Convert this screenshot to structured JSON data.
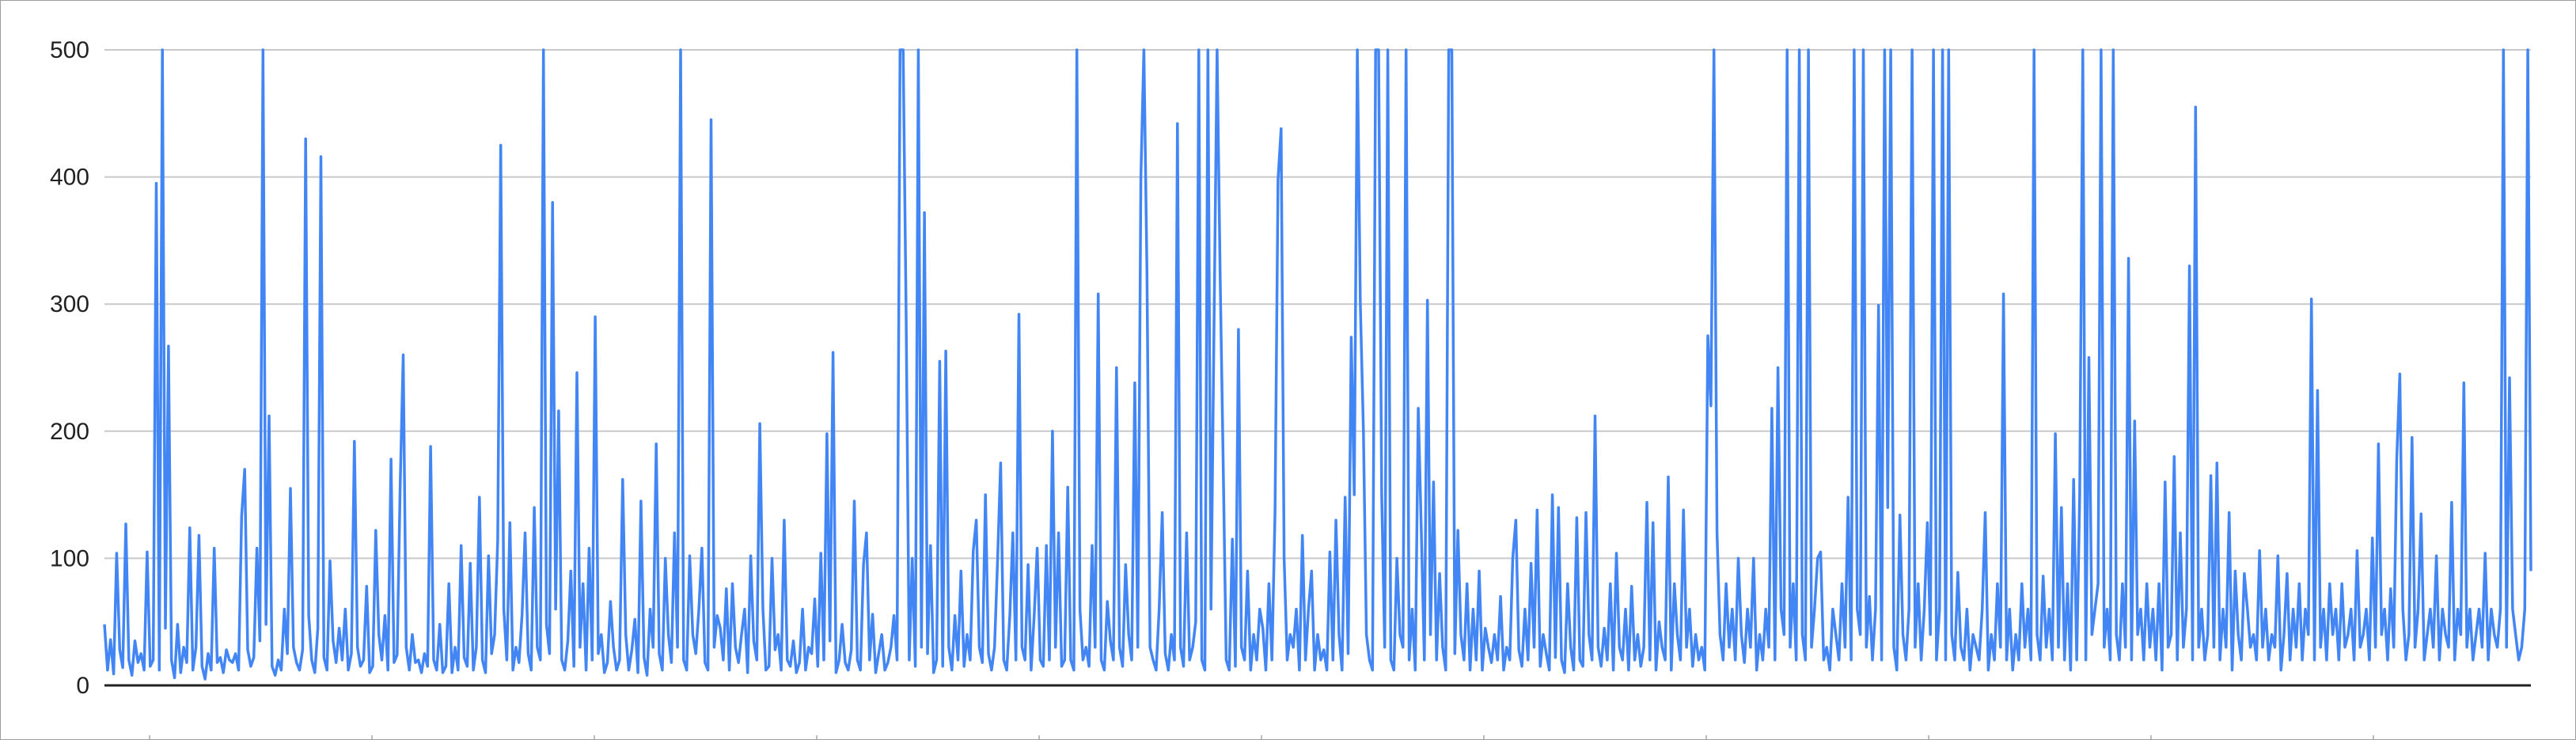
{
  "chart_data": {
    "type": "line",
    "title": "",
    "xlabel": "",
    "ylabel": "",
    "ylim": [
      0,
      500
    ],
    "yticks": [
      "0",
      "100",
      "200",
      "300",
      "400",
      "500"
    ],
    "grid": true,
    "legend": "none",
    "series": [
      {
        "color": "#4285f4",
        "values": [
          48,
          12,
          36,
          9,
          104,
          28,
          14,
          127,
          20,
          8,
          35,
          18,
          25,
          12,
          105,
          15,
          20,
          395,
          12,
          500,
          45,
          267,
          20,
          6,
          48,
          10,
          30,
          18,
          124,
          12,
          30,
          118,
          15,
          5,
          25,
          12,
          108,
          18,
          22,
          10,
          28,
          20,
          18,
          25,
          12,
          133,
          170,
          28,
          15,
          22,
          108,
          35,
          500,
          48,
          212,
          15,
          8,
          20,
          12,
          60,
          25,
          155,
          30,
          18,
          12,
          28,
          430,
          55,
          20,
          10,
          45,
          416,
          22,
          12,
          98,
          35,
          18,
          45,
          20,
          60,
          12,
          25,
          192,
          30,
          15,
          20,
          78,
          10,
          15,
          122,
          40,
          20,
          55,
          12,
          178,
          18,
          24,
          155,
          260,
          30,
          12,
          40,
          18,
          20,
          10,
          25,
          15,
          188,
          20,
          12,
          48,
          10,
          15,
          80,
          10,
          30,
          12,
          110,
          22,
          15,
          96,
          12,
          30,
          148,
          20,
          10,
          102,
          25,
          40,
          114,
          425,
          60,
          20,
          128,
          12,
          30,
          18,
          56,
          120,
          25,
          12,
          140,
          30,
          20,
          500,
          48,
          25,
          380,
          60,
          216,
          20,
          12,
          35,
          90,
          15,
          246,
          30,
          80,
          12,
          108,
          20,
          290,
          25,
          40,
          10,
          18,
          66,
          30,
          12,
          20,
          162,
          40,
          12,
          28,
          52,
          10,
          145,
          22,
          8,
          60,
          30,
          190,
          25,
          12,
          100,
          40,
          18,
          120,
          30,
          500,
          20,
          12,
          102,
          40,
          25,
          60,
          108,
          18,
          12,
          445,
          30,
          55,
          45,
          20,
          76,
          12,
          80,
          30,
          18,
          40,
          60,
          10,
          102,
          35,
          20,
          206,
          60,
          12,
          15,
          100,
          28,
          40,
          12,
          130,
          20,
          15,
          35,
          10,
          18,
          60,
          12,
          30,
          25,
          68,
          15,
          104,
          20,
          198,
          35,
          262,
          10,
          20,
          48,
          18,
          12,
          28,
          145,
          20,
          12,
          95,
          120,
          20,
          56,
          10,
          25,
          40,
          12,
          18,
          30,
          55,
          20,
          500,
          500,
          290,
          20,
          100,
          15,
          500,
          30,
          372,
          25,
          110,
          10,
          20,
          255,
          15,
          263,
          30,
          12,
          55,
          20,
          90,
          15,
          40,
          20,
          106,
          130,
          30,
          18,
          150,
          25,
          12,
          30,
          100,
          175,
          20,
          12,
          55,
          120,
          20,
          292,
          30,
          20,
          95,
          12,
          55,
          108,
          20,
          15,
          110,
          20,
          200,
          30,
          120,
          15,
          20,
          156,
          20,
          12,
          500,
          60,
          20,
          30,
          15,
          110,
          30,
          308,
          20,
          12,
          66,
          35,
          20,
          250,
          30,
          15,
          95,
          40,
          20,
          238,
          30,
          400,
          500,
          325,
          30,
          20,
          12,
          60,
          136,
          25,
          12,
          40,
          20,
          442,
          30,
          15,
          120,
          20,
          30,
          50,
          500,
          20,
          12,
          500,
          60,
          282,
          500,
          325,
          175,
          20,
          12,
          115,
          15,
          280,
          30,
          20,
          90,
          12,
          40,
          20,
          60,
          45,
          12,
          80,
          20,
          136,
          398,
          438,
          100,
          20,
          40,
          30,
          60,
          12,
          118,
          20,
          60,
          90,
          12,
          40,
          20,
          28,
          12,
          105,
          20,
          130,
          40,
          12,
          148,
          25,
          274,
          150,
          500,
          300,
          200,
          40,
          20,
          12,
          500,
          500,
          150,
          30,
          500,
          20,
          12,
          100,
          40,
          30,
          500,
          20,
          60,
          12,
          218,
          120,
          20,
          303,
          40,
          160,
          20,
          88,
          30,
          12,
          500,
          500,
          25,
          122,
          40,
          20,
          80,
          12,
          60,
          20,
          90,
          12,
          45,
          30,
          18,
          40,
          20,
          70,
          12,
          30,
          20,
          100,
          130,
          28,
          15,
          60,
          20,
          96,
          30,
          138,
          15,
          40,
          25,
          12,
          150,
          22,
          140,
          20,
          10,
          80,
          30,
          12,
          132,
          20,
          15,
          136,
          40,
          20,
          212,
          30,
          15,
          45,
          20,
          80,
          12,
          104,
          30,
          20,
          60,
          12,
          78,
          20,
          40,
          15,
          30,
          144,
          20,
          128,
          12,
          50,
          30,
          20,
          164,
          12,
          80,
          40,
          20,
          138,
          30,
          60,
          15,
          40,
          20,
          30,
          12,
          275,
          220,
          500,
          120,
          40,
          20,
          80,
          30,
          60,
          20,
          100,
          40,
          18,
          60,
          30,
          100,
          12,
          40,
          20,
          60,
          30,
          218,
          20,
          250,
          60,
          40,
          500,
          30,
          80,
          20,
          500,
          40,
          20,
          500,
          30,
          60,
          100,
          105,
          20,
          30,
          12,
          60,
          40,
          20,
          80,
          30,
          148,
          20,
          500,
          60,
          40,
          500,
          30,
          70,
          20,
          60,
          299,
          20,
          500,
          140,
          500,
          30,
          12,
          134,
          40,
          20,
          60,
          500,
          30,
          80,
          20,
          60,
          128,
          40,
          500,
          20,
          60,
          500,
          20,
          500,
          40,
          20,
          89,
          30,
          20,
          60,
          12,
          40,
          30,
          20,
          60,
          136,
          12,
          40,
          20,
          80,
          30,
          308,
          20,
          60,
          12,
          40,
          20,
          80,
          30,
          60,
          20,
          500,
          40,
          20,
          86,
          30,
          60,
          20,
          198,
          30,
          140,
          20,
          80,
          12,
          162,
          20,
          150,
          500,
          20,
          258,
          40,
          60,
          80,
          500,
          30,
          60,
          20,
          500,
          40,
          20,
          80,
          30,
          336,
          20,
          208,
          40,
          60,
          20,
          80,
          30,
          60,
          20,
          80,
          12,
          160,
          30,
          40,
          180,
          20,
          120,
          30,
          60,
          330,
          20,
          455,
          30,
          60,
          20,
          40,
          165,
          30,
          175,
          20,
          60,
          30,
          136,
          12,
          90,
          40,
          20,
          88,
          60,
          30,
          40,
          20,
          106,
          30,
          60,
          20,
          40,
          30,
          102,
          12,
          40,
          88,
          20,
          60,
          30,
          80,
          20,
          60,
          40,
          304,
          20,
          232,
          30,
          60,
          20,
          80,
          40,
          60,
          20,
          80,
          30,
          40,
          60,
          20,
          106,
          30,
          40,
          60,
          20,
          116,
          30,
          190,
          40,
          60,
          20,
          76,
          30,
          178,
          245,
          60,
          20,
          40,
          195,
          30,
          60,
          135,
          20,
          40,
          60,
          30,
          102,
          20,
          60,
          40,
          30,
          144,
          20,
          60,
          40,
          238,
          30,
          60,
          20,
          40,
          60,
          30,
          104,
          20,
          60,
          40,
          30,
          60,
          500,
          30,
          242,
          60,
          40,
          20,
          30,
          60,
          500,
          90
        ]
      }
    ]
  }
}
